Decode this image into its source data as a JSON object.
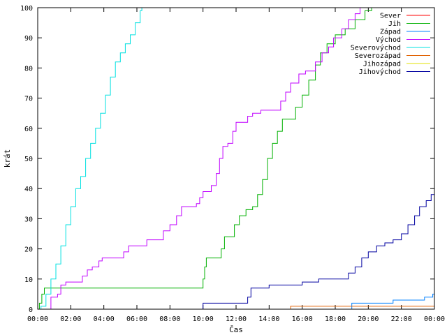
{
  "chart_data": {
    "type": "line",
    "xlabel": "Čas",
    "ylabel": "krát",
    "x_unit": "hours",
    "xlim": [
      0,
      24
    ],
    "ylim": [
      0,
      100
    ],
    "x_ticks": [
      {
        "value": 0,
        "label": "00:00"
      },
      {
        "value": 2,
        "label": "02:00"
      },
      {
        "value": 4,
        "label": "04:00"
      },
      {
        "value": 6,
        "label": "06:00"
      },
      {
        "value": 8,
        "label": "08:00"
      },
      {
        "value": 10,
        "label": "10:00"
      },
      {
        "value": 12,
        "label": "12:00"
      },
      {
        "value": 14,
        "label": "14:00"
      },
      {
        "value": 16,
        "label": "16:00"
      },
      {
        "value": 18,
        "label": "18:00"
      },
      {
        "value": 20,
        "label": "20:00"
      },
      {
        "value": 22,
        "label": "22:00"
      },
      {
        "value": 24,
        "label": "00:00"
      }
    ],
    "y_ticks": [
      0,
      10,
      20,
      30,
      40,
      50,
      60,
      70,
      80,
      90,
      100
    ],
    "legend_position": "top-right",
    "step": true,
    "series": [
      {
        "name": "Sever",
        "color": "#ff0000",
        "points": []
      },
      {
        "name": "Jih",
        "color": "#00b000",
        "points": [
          [
            0,
            0
          ],
          [
            0.1,
            2
          ],
          [
            0.25,
            5
          ],
          [
            0.4,
            7
          ],
          [
            3,
            7
          ],
          [
            6,
            7
          ],
          [
            9.95,
            7
          ],
          [
            10,
            10
          ],
          [
            10.1,
            14
          ],
          [
            10.2,
            17
          ],
          [
            10.9,
            17
          ],
          [
            11.1,
            20
          ],
          [
            11.3,
            24
          ],
          [
            11.7,
            24
          ],
          [
            11.9,
            28
          ],
          [
            12.2,
            31
          ],
          [
            12.6,
            33
          ],
          [
            13,
            34
          ],
          [
            13.3,
            38
          ],
          [
            13.6,
            43
          ],
          [
            13.9,
            50
          ],
          [
            14.2,
            55
          ],
          [
            14.5,
            59
          ],
          [
            14.8,
            63
          ],
          [
            15.3,
            63
          ],
          [
            15.6,
            67
          ],
          [
            16,
            71
          ],
          [
            16.4,
            76
          ],
          [
            16.8,
            81
          ],
          [
            17.1,
            85
          ],
          [
            17.5,
            88
          ],
          [
            18,
            91
          ],
          [
            18.6,
            93
          ],
          [
            19.2,
            96
          ],
          [
            19.8,
            99
          ],
          [
            20.2,
            100
          ],
          [
            24,
            100
          ]
        ]
      },
      {
        "name": "Západ",
        "color": "#0080ff",
        "points": [
          [
            0,
            0
          ],
          [
            18.9,
            0
          ],
          [
            19,
            2
          ],
          [
            21,
            2
          ],
          [
            21.5,
            3
          ],
          [
            23,
            3
          ],
          [
            23.4,
            4
          ],
          [
            23.9,
            5
          ],
          [
            24,
            5
          ]
        ]
      },
      {
        "name": "Východ",
        "color": "#c000ff",
        "points": [
          [
            0,
            0
          ],
          [
            0.7,
            0
          ],
          [
            0.8,
            4
          ],
          [
            1.2,
            5
          ],
          [
            1.4,
            8
          ],
          [
            1.7,
            9
          ],
          [
            2.3,
            9
          ],
          [
            2.7,
            11
          ],
          [
            3,
            13
          ],
          [
            3.3,
            14
          ],
          [
            3.7,
            16
          ],
          [
            3.9,
            17
          ],
          [
            5,
            17
          ],
          [
            5.2,
            19
          ],
          [
            5.5,
            21
          ],
          [
            6.3,
            21
          ],
          [
            6.6,
            23
          ],
          [
            7.3,
            23
          ],
          [
            7.6,
            26
          ],
          [
            8,
            28
          ],
          [
            8.4,
            31
          ],
          [
            8.7,
            34
          ],
          [
            9.2,
            34
          ],
          [
            9.6,
            35
          ],
          [
            9.8,
            37
          ],
          [
            10,
            39
          ],
          [
            10.5,
            41
          ],
          [
            10.8,
            45
          ],
          [
            11,
            50
          ],
          [
            11.2,
            54
          ],
          [
            11.5,
            55
          ],
          [
            11.8,
            59
          ],
          [
            12,
            62
          ],
          [
            12.4,
            62
          ],
          [
            12.7,
            64
          ],
          [
            13,
            65
          ],
          [
            13.5,
            66
          ],
          [
            14.3,
            66
          ],
          [
            14.7,
            69
          ],
          [
            15,
            72
          ],
          [
            15.3,
            75
          ],
          [
            15.8,
            78
          ],
          [
            16.2,
            79
          ],
          [
            16.8,
            82
          ],
          [
            17.2,
            85
          ],
          [
            17.6,
            87
          ],
          [
            17.9,
            90
          ],
          [
            18.4,
            93
          ],
          [
            18.8,
            96
          ],
          [
            19.2,
            98
          ],
          [
            19.5,
            100
          ],
          [
            24,
            100
          ]
        ]
      },
      {
        "name": "Severovýchod",
        "color": "#00e0e0",
        "points": [
          [
            0,
            0
          ],
          [
            0.2,
            1
          ],
          [
            0.5,
            5
          ],
          [
            0.8,
            10
          ],
          [
            1.1,
            15
          ],
          [
            1.4,
            21
          ],
          [
            1.7,
            28
          ],
          [
            2,
            34
          ],
          [
            2.3,
            40
          ],
          [
            2.6,
            44
          ],
          [
            2.9,
            50
          ],
          [
            3.2,
            55
          ],
          [
            3.5,
            60
          ],
          [
            3.8,
            65
          ],
          [
            4.1,
            71
          ],
          [
            4.4,
            77
          ],
          [
            4.7,
            82
          ],
          [
            5,
            85
          ],
          [
            5.3,
            88
          ],
          [
            5.6,
            91
          ],
          [
            5.9,
            95
          ],
          [
            6.2,
            99
          ],
          [
            6.3,
            100
          ],
          [
            24,
            100
          ]
        ]
      },
      {
        "name": "Severozápad",
        "color": "#e06000",
        "points": [
          [
            0,
            0
          ],
          [
            15.2,
            0
          ],
          [
            15.3,
            1
          ],
          [
            23.8,
            1
          ],
          [
            24,
            2
          ]
        ]
      },
      {
        "name": "Jihozápad",
        "color": "#e0e000",
        "points": []
      },
      {
        "name": "Jihovýchod",
        "color": "#0000a0",
        "points": [
          [
            0,
            0
          ],
          [
            9.95,
            0
          ],
          [
            10,
            2
          ],
          [
            12.5,
            2
          ],
          [
            12.7,
            4
          ],
          [
            12.9,
            7
          ],
          [
            13.5,
            7
          ],
          [
            14,
            8
          ],
          [
            15,
            8
          ],
          [
            16,
            9
          ],
          [
            17,
            10
          ],
          [
            18,
            10
          ],
          [
            18.8,
            12
          ],
          [
            19.2,
            14
          ],
          [
            19.6,
            17
          ],
          [
            20,
            19
          ],
          [
            20.5,
            21
          ],
          [
            21,
            22
          ],
          [
            21.5,
            23
          ],
          [
            22,
            25
          ],
          [
            22.4,
            28
          ],
          [
            22.8,
            31
          ],
          [
            23.1,
            34
          ],
          [
            23.5,
            36
          ],
          [
            23.8,
            38
          ],
          [
            24,
            38
          ]
        ]
      }
    ]
  }
}
